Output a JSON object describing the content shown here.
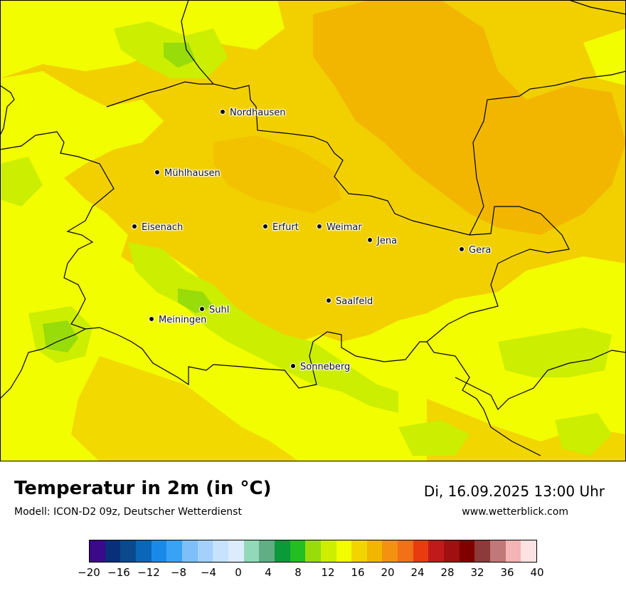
{
  "header": {
    "title": "Temperatur in 2m (in °C)",
    "subtitle": "Modell: ICON-D2 09z, Deutscher Wetterdienst",
    "datetime": "Di, 16.09.2025 13:00 Uhr",
    "website": "www.wetterblick.com"
  },
  "cities": [
    {
      "id": "nordhausen",
      "name": "Nordhausen"
    },
    {
      "id": "muehlhausen",
      "name": "Mühlhausen"
    },
    {
      "id": "eisenach",
      "name": "Eisenach"
    },
    {
      "id": "erfurt",
      "name": "Erfurt"
    },
    {
      "id": "weimar",
      "name": "Weimar"
    },
    {
      "id": "jena",
      "name": "Jena"
    },
    {
      "id": "gera",
      "name": "Gera"
    },
    {
      "id": "saalfeld",
      "name": "Saalfeld"
    },
    {
      "id": "suhl",
      "name": "Suhl"
    },
    {
      "id": "meiningen",
      "name": "Meiningen"
    },
    {
      "id": "sonneberg",
      "name": "Sonneberg"
    }
  ],
  "legend": {
    "colors": [
      "#3a0a8a",
      "#08307a",
      "#0a4a8c",
      "#0a66b8",
      "#1a8ae8",
      "#3aa2f5",
      "#7ebff9",
      "#a3d1fb",
      "#c6e2fd",
      "#dcecfd",
      "#91d9b8",
      "#61ad84",
      "#0a9a3a",
      "#22be22",
      "#98dc0a",
      "#ccee00",
      "#f2fd00",
      "#f2d400",
      "#f2b600",
      "#f29210",
      "#f27018",
      "#e83c10",
      "#c01a1a",
      "#a01010",
      "#800000",
      "#8c3a3a",
      "#c07878",
      "#f2b4b4",
      "#fde2e2"
    ],
    "ticks": [
      "−20",
      "−16",
      "−12",
      "−8",
      "−4",
      "0",
      "4",
      "8",
      "12",
      "16",
      "20",
      "24",
      "28",
      "32",
      "36",
      "40"
    ]
  },
  "map_colors": {
    "base_warm": "#f2d000",
    "yellow": "#f2fd00",
    "orange": "#f2b600",
    "green_yellow": "#ccee00",
    "light_green": "#98dc0a",
    "border": "#000000"
  }
}
